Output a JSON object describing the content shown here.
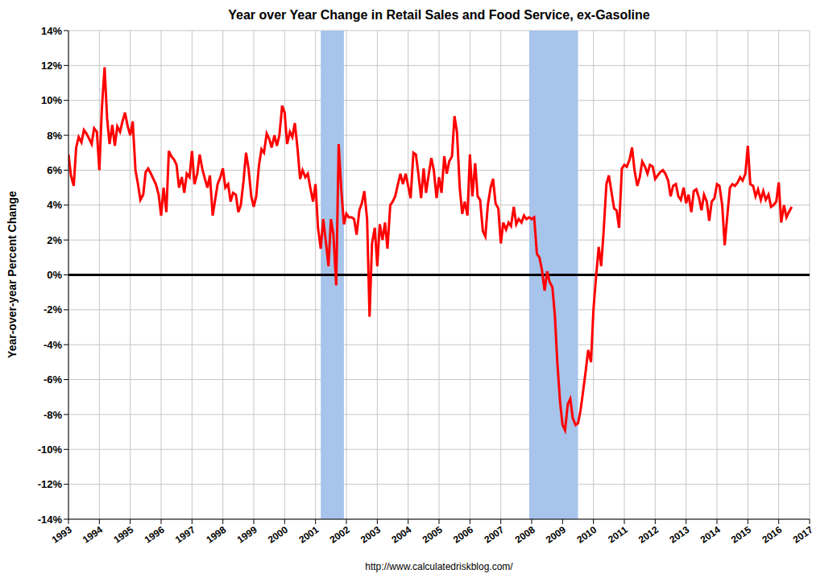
{
  "chart_data": {
    "type": "line",
    "title": "Year over Year Change in Retail Sales and Food Service, ex-Gasoline",
    "y_label": "Year-over-year Percent Change",
    "source": "http://www.calculatedriskblog.com/",
    "color": "#ff0000",
    "grid": true,
    "xlim": [
      1993,
      2017
    ],
    "xticks": [
      1993,
      1994,
      1995,
      1996,
      1997,
      1998,
      1999,
      2000,
      2001,
      2002,
      2003,
      2004,
      2005,
      2006,
      2007,
      2008,
      2009,
      2010,
      2011,
      2012,
      2013,
      2014,
      2015,
      2016,
      2017
    ],
    "ylim": [
      -14,
      14
    ],
    "yticks": [
      {
        "value": -14,
        "label": "-14%"
      },
      {
        "value": -12,
        "label": "-12%"
      },
      {
        "value": -10,
        "label": "-10%"
      },
      {
        "value": -8,
        "label": "-8%"
      },
      {
        "value": -6,
        "label": "-6%"
      },
      {
        "value": -4,
        "label": "-4%"
      },
      {
        "value": -2,
        "label": "-2%"
      },
      {
        "value": 0,
        "label": "0%"
      },
      {
        "value": 2,
        "label": "2%"
      },
      {
        "value": 4,
        "label": "4%"
      },
      {
        "value": 6,
        "label": "6%"
      },
      {
        "value": 8,
        "label": "8%"
      },
      {
        "value": 10,
        "label": "10%"
      },
      {
        "value": 12,
        "label": "12%"
      },
      {
        "value": 14,
        "label": "14%"
      }
    ],
    "hline": 0,
    "recessions": [
      {
        "start": 2001.17,
        "end": 2001.92
      },
      {
        "start": 2007.92,
        "end": 2009.5
      }
    ],
    "x": [
      1993,
      1993.08,
      1993.17,
      1993.25,
      1993.33,
      1993.42,
      1993.5,
      1993.58,
      1993.67,
      1993.75,
      1993.83,
      1993.92,
      1994,
      1994.08,
      1994.17,
      1994.25,
      1994.33,
      1994.42,
      1994.5,
      1994.58,
      1994.67,
      1994.75,
      1994.83,
      1994.92,
      1995,
      1995.08,
      1995.17,
      1995.25,
      1995.33,
      1995.42,
      1995.5,
      1995.58,
      1995.67,
      1995.75,
      1995.83,
      1995.92,
      1996,
      1996.08,
      1996.17,
      1996.25,
      1996.33,
      1996.42,
      1996.5,
      1996.58,
      1996.67,
      1996.75,
      1996.83,
      1996.92,
      1997,
      1997.08,
      1997.17,
      1997.25,
      1997.33,
      1997.42,
      1997.5,
      1997.58,
      1997.67,
      1997.75,
      1997.83,
      1997.92,
      1998,
      1998.08,
      1998.17,
      1998.25,
      1998.33,
      1998.42,
      1998.5,
      1998.58,
      1998.67,
      1998.75,
      1998.83,
      1998.92,
      1999,
      1999.08,
      1999.17,
      1999.25,
      1999.33,
      1999.42,
      1999.5,
      1999.58,
      1999.67,
      1999.75,
      1999.83,
      1999.92,
      2000,
      2000.08,
      2000.17,
      2000.25,
      2000.33,
      2000.42,
      2000.5,
      2000.58,
      2000.67,
      2000.75,
      2000.83,
      2000.92,
      2001,
      2001.08,
      2001.17,
      2001.25,
      2001.33,
      2001.42,
      2001.5,
      2001.58,
      2001.67,
      2001.75,
      2001.83,
      2001.92,
      2002,
      2002.08,
      2002.17,
      2002.25,
      2002.33,
      2002.42,
      2002.5,
      2002.58,
      2002.67,
      2002.75,
      2002.83,
      2002.92,
      2003,
      2003.08,
      2003.17,
      2003.25,
      2003.33,
      2003.42,
      2003.5,
      2003.58,
      2003.67,
      2003.75,
      2003.83,
      2003.92,
      2004,
      2004.08,
      2004.17,
      2004.25,
      2004.33,
      2004.42,
      2004.5,
      2004.58,
      2004.67,
      2004.75,
      2004.83,
      2004.92,
      2005,
      2005.08,
      2005.17,
      2005.25,
      2005.33,
      2005.42,
      2005.5,
      2005.58,
      2005.67,
      2005.75,
      2005.83,
      2005.92,
      2006,
      2006.08,
      2006.17,
      2006.25,
      2006.33,
      2006.42,
      2006.5,
      2006.58,
      2006.67,
      2006.75,
      2006.83,
      2006.92,
      2007,
      2007.08,
      2007.17,
      2007.25,
      2007.33,
      2007.42,
      2007.5,
      2007.58,
      2007.67,
      2007.75,
      2007.83,
      2007.92,
      2008,
      2008.08,
      2008.17,
      2008.25,
      2008.33,
      2008.42,
      2008.5,
      2008.58,
      2008.67,
      2008.75,
      2008.83,
      2008.92,
      2009,
      2009.08,
      2009.17,
      2009.25,
      2009.33,
      2009.42,
      2009.5,
      2009.58,
      2009.67,
      2009.75,
      2009.83,
      2009.92,
      2010,
      2010.08,
      2010.17,
      2010.25,
      2010.33,
      2010.42,
      2010.5,
      2010.58,
      2010.67,
      2010.75,
      2010.83,
      2010.92,
      2011,
      2011.08,
      2011.17,
      2011.25,
      2011.33,
      2011.42,
      2011.5,
      2011.58,
      2011.67,
      2011.75,
      2011.83,
      2011.92,
      2012,
      2012.08,
      2012.17,
      2012.25,
      2012.33,
      2012.42,
      2012.5,
      2012.58,
      2012.67,
      2012.75,
      2012.83,
      2012.92,
      2013,
      2013.08,
      2013.17,
      2013.25,
      2013.33,
      2013.42,
      2013.5,
      2013.58,
      2013.67,
      2013.75,
      2013.83,
      2013.92,
      2014,
      2014.08,
      2014.17,
      2014.25,
      2014.33,
      2014.42,
      2014.5,
      2014.58,
      2014.67,
      2014.75,
      2014.83,
      2014.92,
      2015,
      2015.08,
      2015.17,
      2015.25,
      2015.33,
      2015.42,
      2015.5,
      2015.58,
      2015.67,
      2015.75,
      2015.83,
      2015.92,
      2016,
      2016.08,
      2016.17,
      2016.25,
      2016.33,
      2016.42
    ],
    "values": [
      6.9,
      5.7,
      5.1,
      7.3,
      7.9,
      7.6,
      8.3,
      8.1,
      7.8,
      7.5,
      8.4,
      8.2,
      6.0,
      9.5,
      11.9,
      9.0,
      7.5,
      8.6,
      7.4,
      8.5,
      8.2,
      8.8,
      9.3,
      8.5,
      8.0,
      8.8,
      6.0,
      5.2,
      4.3,
      4.6,
      5.9,
      6.1,
      5.8,
      5.5,
      5.2,
      4.6,
      3.4,
      5.0,
      3.6,
      7.1,
      6.8,
      6.6,
      6.3,
      5.0,
      5.6,
      4.7,
      5.8,
      5.6,
      7.1,
      5.2,
      5.8,
      6.9,
      6.1,
      5.5,
      5.0,
      5.7,
      3.4,
      4.3,
      5.2,
      5.6,
      6.1,
      5.0,
      5.2,
      4.2,
      4.7,
      4.6,
      3.6,
      4.0,
      5.4,
      7.0,
      6.1,
      4.5,
      3.9,
      4.5,
      6.3,
      7.2,
      7.0,
      8.1,
      7.8,
      7.3,
      8.0,
      7.4,
      8.0,
      9.7,
      9.3,
      7.5,
      8.2,
      7.9,
      8.7,
      7.2,
      5.5,
      6.0,
      5.6,
      5.8,
      5.0,
      4.2,
      5.2,
      2.7,
      1.5,
      3.2,
      2.0,
      0.5,
      3.2,
      2.3,
      -0.6,
      7.5,
      5.0,
      2.9,
      3.5,
      3.3,
      3.3,
      3.2,
      2.3,
      3.7,
      4.1,
      4.8,
      3.2,
      -2.4,
      1.8,
      2.7,
      0.5,
      2.9,
      2.0,
      3.0,
      1.5,
      4.0,
      4.2,
      4.5,
      5.2,
      5.8,
      5.2,
      5.8,
      5.1,
      4.4,
      7.0,
      6.9,
      5.8,
      4.4,
      6.1,
      4.7,
      5.8,
      6.7,
      6.0,
      4.4,
      5.6,
      4.7,
      6.8,
      5.8,
      6.5,
      6.8,
      9.1,
      8.2,
      5.0,
      3.5,
      4.2,
      3.4,
      6.9,
      4.5,
      6.4,
      4.5,
      4.3,
      2.5,
      2.2,
      4.0,
      5.0,
      5.5,
      4.1,
      3.8,
      1.8,
      3.0,
      2.6,
      3.0,
      2.8,
      3.9,
      2.9,
      3.2,
      3.0,
      3.4,
      3.2,
      3.3,
      3.2,
      3.3,
      1.2,
      1.0,
      0.3,
      -0.9,
      0.2,
      -0.4,
      -0.7,
      -2.3,
      -5.0,
      -7.3,
      -8.6,
      -8.9,
      -7.4,
      -7.1,
      -8.2,
      -8.6,
      -8.5,
      -7.8,
      -6.6,
      -5.5,
      -4.3,
      -5.0,
      -2.0,
      -0.2,
      1.6,
      0.5,
      2.5,
      5.2,
      5.7,
      4.8,
      3.8,
      3.7,
      2.7,
      6.1,
      6.3,
      6.2,
      6.6,
      7.3,
      6.0,
      5.1,
      5.6,
      6.5,
      6.2,
      5.8,
      6.3,
      6.2,
      5.5,
      5.7,
      5.9,
      6.0,
      5.8,
      5.4,
      4.5,
      5.1,
      5.2,
      4.5,
      4.3,
      5.0,
      4.1,
      4.6,
      3.6,
      4.8,
      4.9,
      4.4,
      3.7,
      4.6,
      4.2,
      3.1,
      4.2,
      4.4,
      5.2,
      5.1,
      4.0,
      1.7,
      3.3,
      5.0,
      5.2,
      5.1,
      5.3,
      5.6,
      5.4,
      5.8,
      7.4,
      5.2,
      5.1,
      4.5,
      4.9,
      4.3,
      4.8,
      4.3,
      4.6,
      3.9,
      4.0,
      4.2,
      5.3,
      3.0,
      4.0,
      3.3,
      3.6,
      3.9
    ]
  }
}
